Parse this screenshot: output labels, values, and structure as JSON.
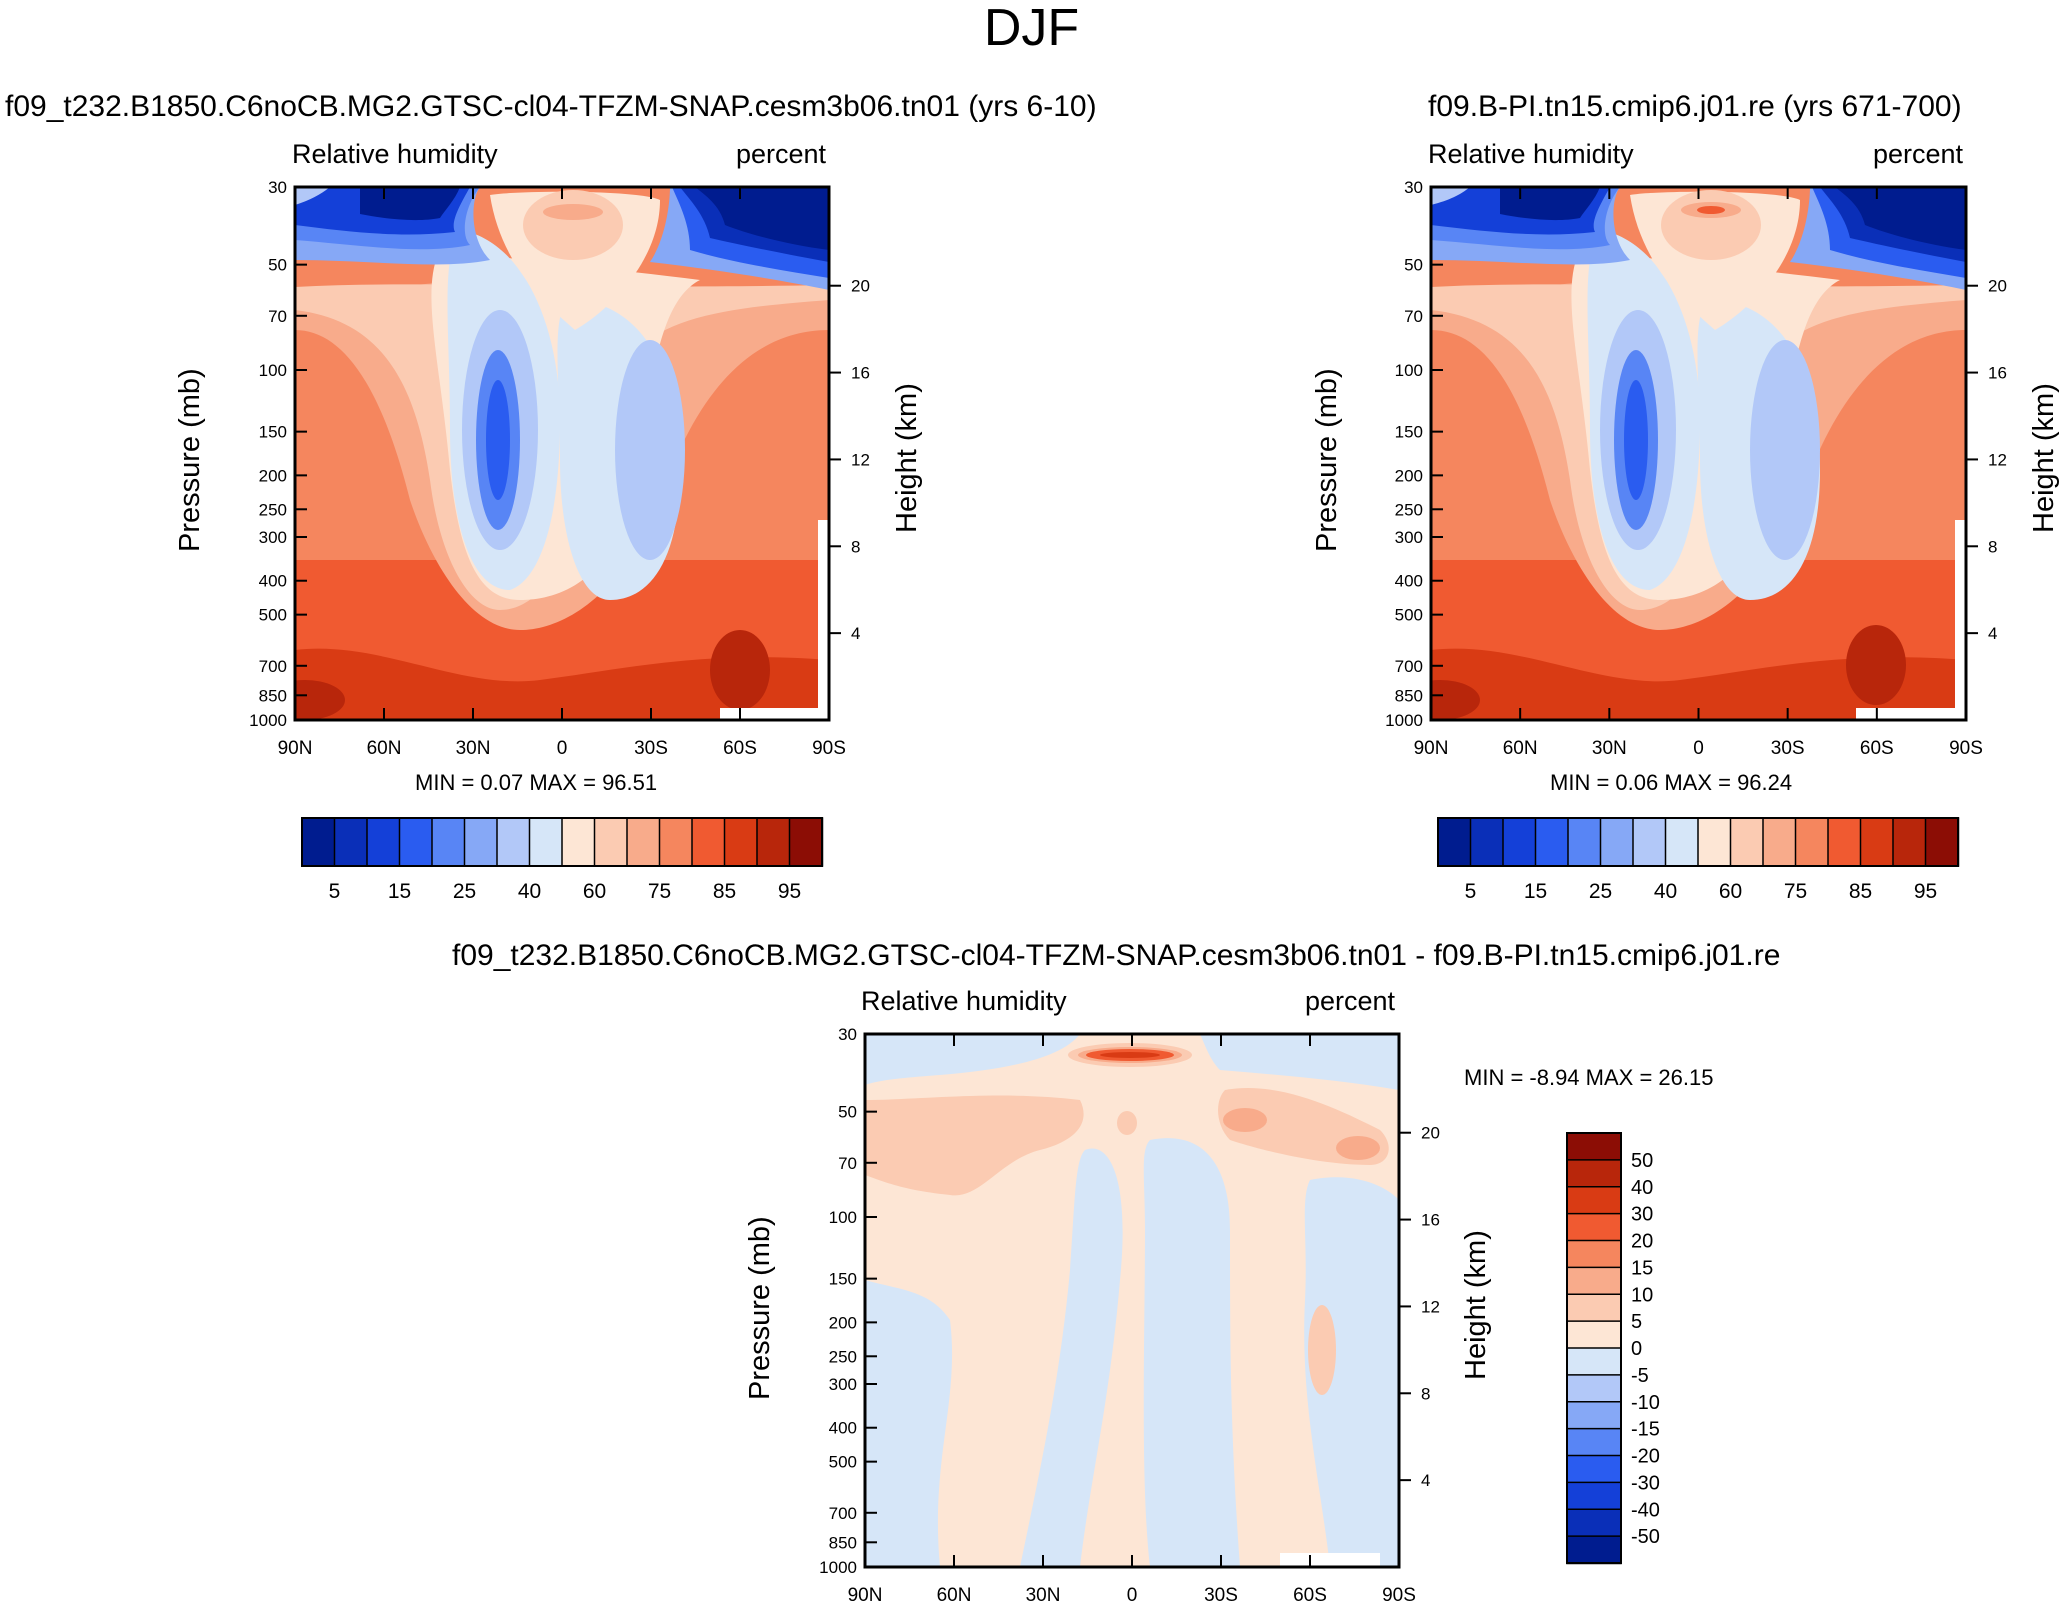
{
  "main_title": "DJF",
  "units": "percent",
  "variable": "Relative humidity",
  "colors": {
    "abs_levels": [
      "#001c8f",
      "#0a2fb8",
      "#1440d8",
      "#2a5cf0",
      "#5885f5",
      "#86a8f6",
      "#b2c8f8",
      "#d6e6f8",
      "#fde6d5",
      "#fbcbb2",
      "#f8ab8b",
      "#f5865e",
      "#f05a31",
      "#d93b14",
      "#b8260b",
      "#8c0d05"
    ],
    "diff_levels": [
      "#001c8f",
      "#0a2fb8",
      "#1440d8",
      "#2a5cf0",
      "#5885f5",
      "#86a8f6",
      "#b2c8f8",
      "#d6e6f8",
      "#fde6d5",
      "#fbcbb2",
      "#f8ab8b",
      "#f5865e",
      "#f05a31",
      "#d93b14",
      "#b8260b",
      "#8c0d05"
    ]
  },
  "chart_data": [
    {
      "type": "contour",
      "panel": "top-left",
      "title": "f09_t232.B1850.C6noCB.MG2.GTSC-cl04-TFZM-SNAP.cesm3b06.tn01 (yrs 6-10)",
      "left_label": "Relative humidity",
      "right_label": "percent",
      "xlabel": "",
      "ylabel": "Pressure (mb)",
      "ylabel_right": "Height (km)",
      "x_ticks": [
        "90N",
        "60N",
        "30N",
        "0",
        "30S",
        "60S",
        "90S"
      ],
      "y_ticks": [
        "30",
        "50",
        "70",
        "100",
        "150",
        "200",
        "250",
        "300",
        "400",
        "500",
        "700",
        "850",
        "1000"
      ],
      "height_ticks": [
        "20",
        "16",
        "12",
        "8",
        "4"
      ],
      "min_text": "MIN =   0.07  MAX =  96.51",
      "min": 0.07,
      "max": 96.51,
      "colorbar_labels": [
        "5",
        "15",
        "25",
        "40",
        "60",
        "75",
        "85",
        "95"
      ]
    },
    {
      "type": "contour",
      "panel": "top-right",
      "title": "f09.B-PI.tn15.cmip6.j01.re (yrs 671-700)",
      "left_label": "Relative humidity",
      "right_label": "percent",
      "xlabel": "",
      "ylabel": "Pressure (mb)",
      "ylabel_right": "Height (km)",
      "x_ticks": [
        "90N",
        "60N",
        "30N",
        "0",
        "30S",
        "60S",
        "90S"
      ],
      "y_ticks": [
        "30",
        "50",
        "70",
        "100",
        "150",
        "200",
        "250",
        "300",
        "400",
        "500",
        "700",
        "850",
        "1000"
      ],
      "height_ticks": [
        "20",
        "16",
        "12",
        "8",
        "4"
      ],
      "min_text": "MIN =   0.06  MAX =  96.24",
      "min": 0.06,
      "max": 96.24,
      "colorbar_labels": [
        "5",
        "15",
        "25",
        "40",
        "60",
        "75",
        "85",
        "95"
      ]
    },
    {
      "type": "contour",
      "panel": "bottom",
      "title": "f09_t232.B1850.C6noCB.MG2.GTSC-cl04-TFZM-SNAP.cesm3b06.tn01 - f09.B-PI.tn15.cmip6.j01.re",
      "left_label": "Relative humidity",
      "right_label": "percent",
      "xlabel": "",
      "ylabel": "Pressure (mb)",
      "ylabel_right": "Height (km)",
      "x_ticks": [
        "90N",
        "60N",
        "30N",
        "0",
        "30S",
        "60S",
        "90S"
      ],
      "y_ticks": [
        "30",
        "50",
        "70",
        "100",
        "150",
        "200",
        "250",
        "300",
        "400",
        "500",
        "700",
        "850",
        "1000"
      ],
      "height_ticks": [
        "20",
        "16",
        "12",
        "8",
        "4"
      ],
      "min_text": "MIN =  -8.94  MAX =  26.15",
      "min": -8.94,
      "max": 26.15,
      "colorbar_labels": [
        "50",
        "40",
        "30",
        "20",
        "15",
        "10",
        "5",
        "0",
        "-5",
        "-10",
        "-15",
        "-20",
        "-30",
        "-40",
        "-50"
      ]
    }
  ]
}
